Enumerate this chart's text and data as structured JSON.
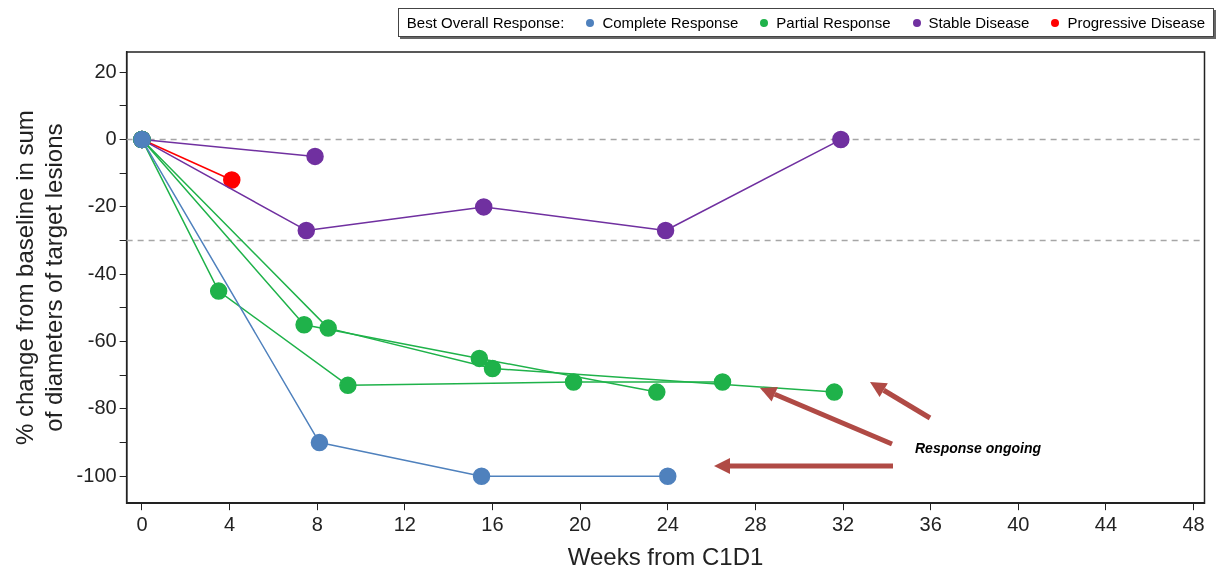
{
  "chart_data": {
    "type": "line",
    "xlabel": "Weeks from C1D1",
    "ylabel": "% change from baseline in sum of diameters of target lesions",
    "legend_title": "Best Overall Response:",
    "legend": "top right",
    "marker": "circle",
    "line_style": "solid",
    "xlim": [
      -0.7,
      48.5
    ],
    "xticks": [
      0,
      4,
      8,
      12,
      16,
      20,
      24,
      28,
      32,
      36,
      40,
      44,
      48
    ],
    "ylim": [
      -108,
      26
    ],
    "yticks": [
      20,
      {
        "value": 10,
        "label": null
      },
      0,
      {
        "value": -10,
        "label": null
      },
      -20,
      {
        "value": -30,
        "label": null
      },
      -40,
      {
        "value": -50,
        "label": null
      },
      -60,
      {
        "value": -70,
        "label": null
      },
      -80,
      {
        "value": -90,
        "label": null
      },
      -100
    ],
    "ref_lines": [
      {
        "axis": "y",
        "value": 0,
        "color": "#a6a6a6",
        "line_style": "dashed"
      },
      {
        "axis": "y",
        "value": -30,
        "color": "#a6a6a6",
        "line_style": "dashed"
      }
    ],
    "annotations": [
      "Response ongoing"
    ],
    "series": [
      {
        "name": "Complete Response",
        "color": "#4f81bd",
        "x": [
          0,
          8.1,
          15.5,
          24
        ],
        "values": [
          0,
          -90,
          -100,
          -100
        ]
      },
      {
        "name": "Partial Response",
        "color": "#1fb24a",
        "x": [
          0,
          3.5,
          9.4,
          19.7,
          26.5
        ],
        "values": [
          0,
          -45,
          -73,
          -72,
          -72
        ]
      },
      {
        "color": "#1fb24a",
        "x": [
          0,
          7.4,
          15.4,
          23.5
        ],
        "values": [
          0,
          -55,
          -65,
          -75
        ]
      },
      {
        "color": "#1fb24a",
        "x": [
          0,
          8.5,
          16,
          31.6
        ],
        "values": [
          0,
          -56,
          -68,
          -75
        ]
      },
      {
        "name": "Stable Disease",
        "color": "#7030a0",
        "x": [
          0,
          7.9
        ],
        "values": [
          0,
          -5
        ]
      },
      {
        "color": "#7030a0",
        "x": [
          0,
          7.5,
          15.6,
          23.9,
          31.9
        ],
        "values": [
          0,
          -27,
          -20,
          -27,
          0
        ]
      },
      {
        "name": "Progressive Disease",
        "color": "#ff0000",
        "x": [
          0,
          4.1
        ],
        "values": [
          0,
          -12
        ]
      }
    ]
  }
}
